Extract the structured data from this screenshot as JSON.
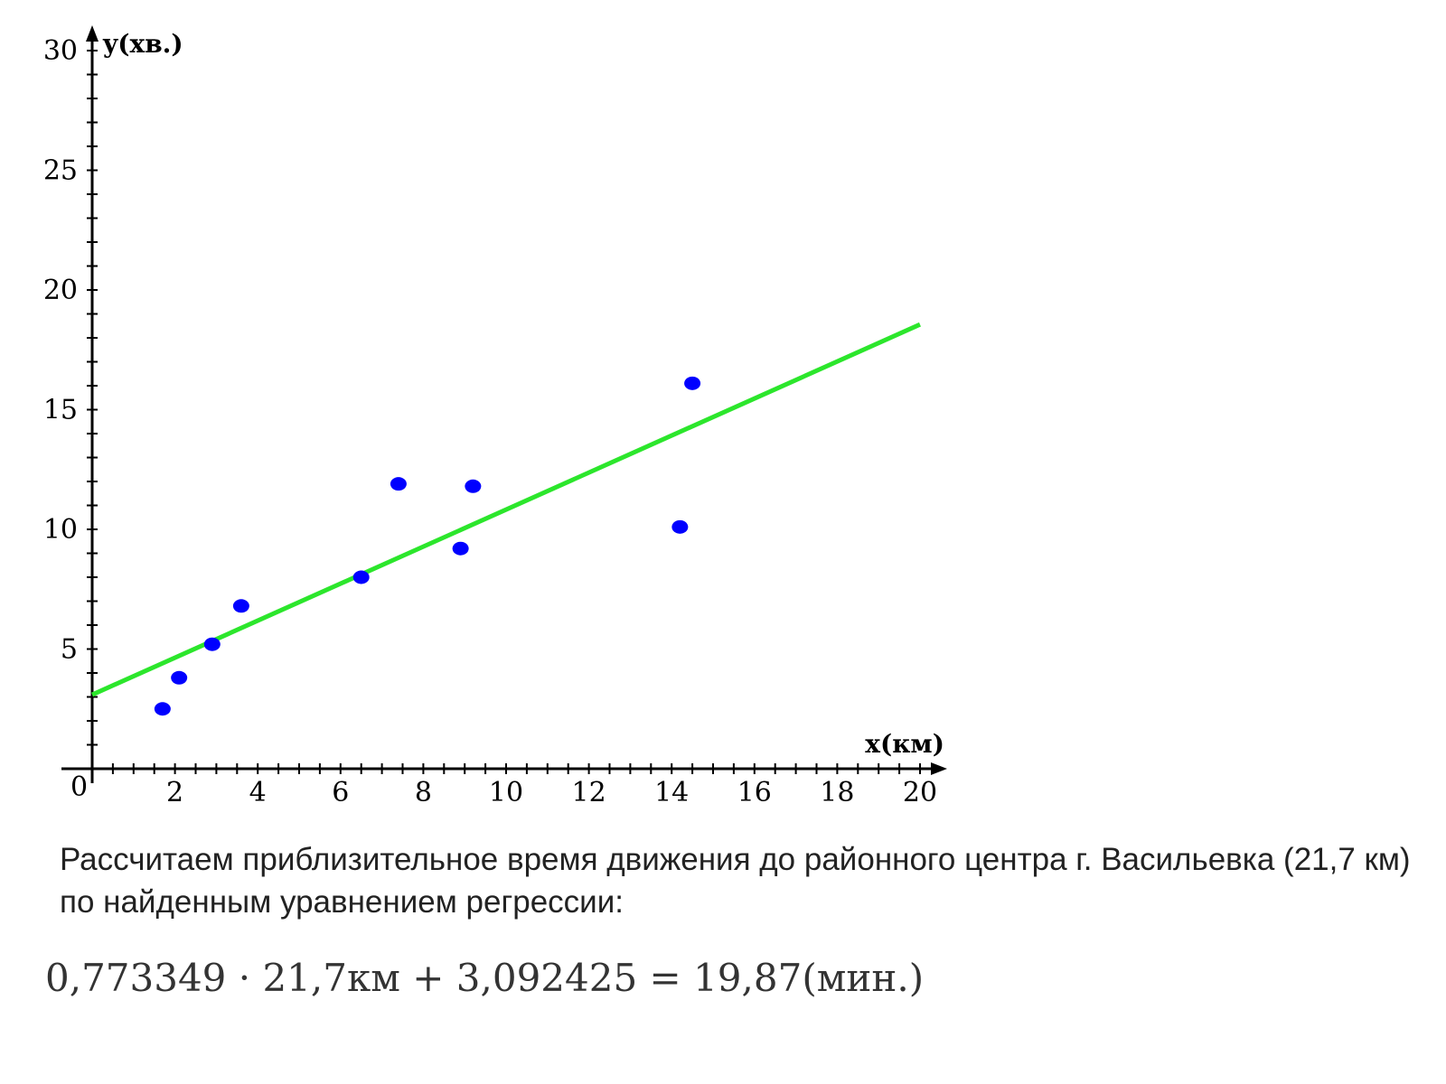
{
  "chart_data": {
    "type": "scatter",
    "title": "",
    "xlabel": "x(км)",
    "ylabel": "y(хв.)",
    "origin_label": "0",
    "xlim": [
      0,
      20
    ],
    "ylim": [
      0,
      30
    ],
    "x_ticks": [
      2,
      4,
      6,
      8,
      10,
      12,
      14,
      16,
      18,
      20
    ],
    "y_ticks": [
      5,
      10,
      15,
      20,
      25,
      30
    ],
    "x_minor_step": 0.5,
    "y_minor_step": 1,
    "grid": false,
    "series": [
      {
        "points": [
          {
            "x": 1.7,
            "y": 2.5
          },
          {
            "x": 2.1,
            "y": 3.8
          },
          {
            "x": 2.9,
            "y": 5.2
          },
          {
            "x": 3.6,
            "y": 6.8
          },
          {
            "x": 6.5,
            "y": 8.0
          },
          {
            "x": 7.4,
            "y": 11.9
          },
          {
            "x": 8.9,
            "y": 9.2
          },
          {
            "x": 9.2,
            "y": 11.8
          },
          {
            "x": 14.2,
            "y": 10.1
          },
          {
            "x": 14.5,
            "y": 16.1
          }
        ],
        "color": "#0000ff"
      }
    ],
    "regression_line": {
      "slope": 0.773349,
      "intercept": 3.092425,
      "x_range": [
        0,
        20
      ],
      "color": "#2ce62c"
    },
    "axis_color": "#000000"
  },
  "text": {
    "caption": "Рассчитаем приблизительное время движения до районного центра г. Васильевка (21,7 км) по найденным уравнением регрессии:",
    "formula": "0,773349 · 21,7км + 3,092425 = 19,87(мин.)"
  }
}
